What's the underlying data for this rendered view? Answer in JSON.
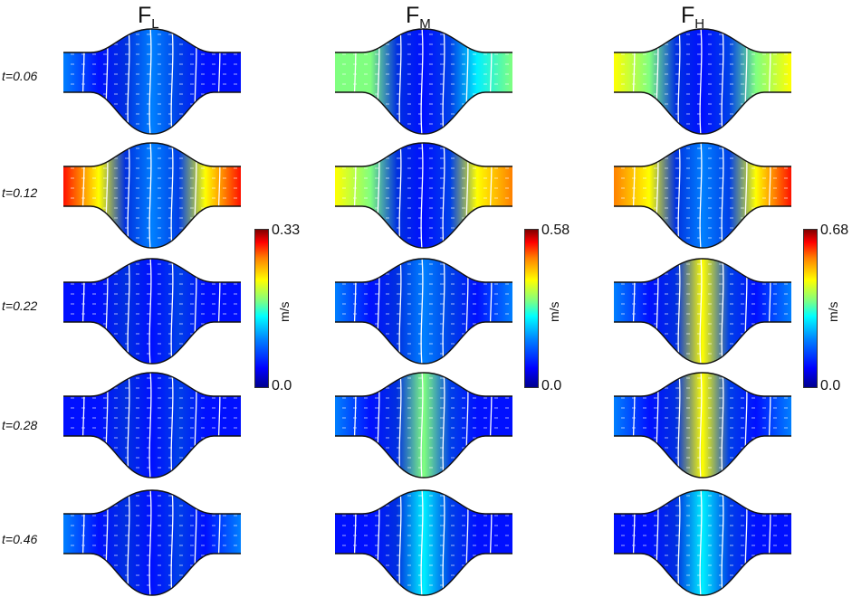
{
  "columns": [
    {
      "base": "F",
      "sub": "L"
    },
    {
      "base": "F",
      "sub": "M"
    },
    {
      "base": "F",
      "sub": "H"
    }
  ],
  "rows": [
    "t=0.06",
    "t=0.12",
    "t=0.22",
    "t=0.28",
    "t=0.46"
  ],
  "colorbars": [
    {
      "max": "0.33",
      "min": "0.0",
      "unit": "m/s"
    },
    {
      "max": "0.58",
      "min": "0.0",
      "unit": "m/s"
    },
    {
      "max": "0.68",
      "min": "0.0",
      "unit": "m/s"
    }
  ],
  "colors": {
    "low": "#0010c8",
    "mid": "#00c8ff",
    "high": "#d01000",
    "streamline": "#ffffff"
  }
}
